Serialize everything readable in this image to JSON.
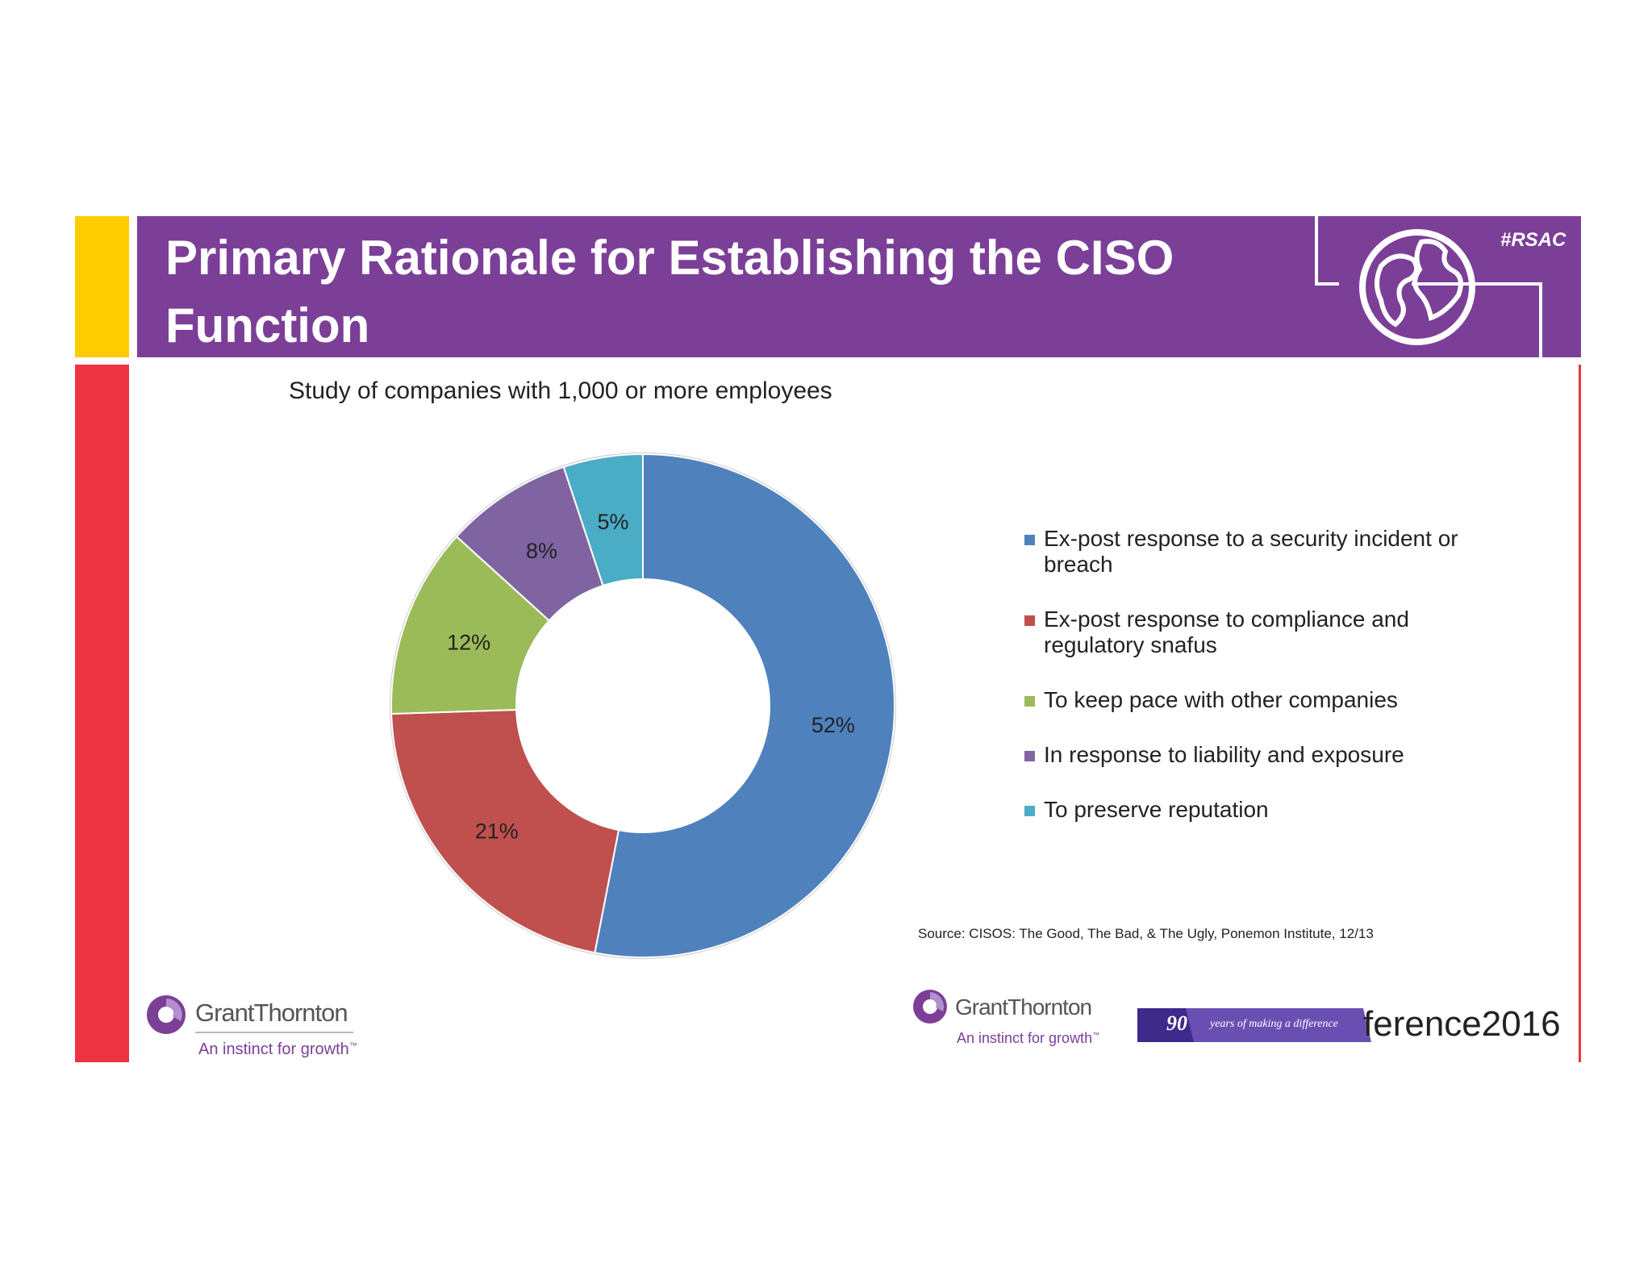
{
  "header": {
    "title": "Primary Rationale for Establishing the CISO Function",
    "hashtag": "#RSAC"
  },
  "chart_data": {
    "type": "pie",
    "title": "Study of companies with 1,000 or more employees",
    "series": [
      {
        "label": "Ex-post response to a security incident or breach",
        "value": 52,
        "value_label": "52%",
        "color": "#4f81bd"
      },
      {
        "label": "Ex-post response to compliance and regulatory snafus",
        "value": 21,
        "value_label": "21%",
        "color": "#c0504d"
      },
      {
        "label": "To keep pace with other companies",
        "value": 12,
        "value_label": "12%",
        "color": "#9bbb59"
      },
      {
        "label": "In response to liability and exposure",
        "value": 8,
        "value_label": "8%",
        "color": "#8064a2"
      },
      {
        "label": "To preserve reputation",
        "value": 5,
        "value_label": "5%",
        "color": "#4bacc6"
      }
    ],
    "legend_position": "right",
    "donut": true
  },
  "source": "Source: CISOS: The Good, The Bad, & The Ugly, Ponemon Institute, 12/13",
  "logos": {
    "brand_name": "GrantThornton",
    "tagline": "An instinct for growth",
    "tagline_mark": "™",
    "badge_number": "90",
    "badge_text": "years of making a difference",
    "conference_text": "ference2016"
  },
  "colors": {
    "header_purple": "#7b3f98",
    "accent_yellow": "#ffcc00",
    "accent_red": "#ee3344"
  },
  "icons": {
    "globe": "globe-icon"
  }
}
